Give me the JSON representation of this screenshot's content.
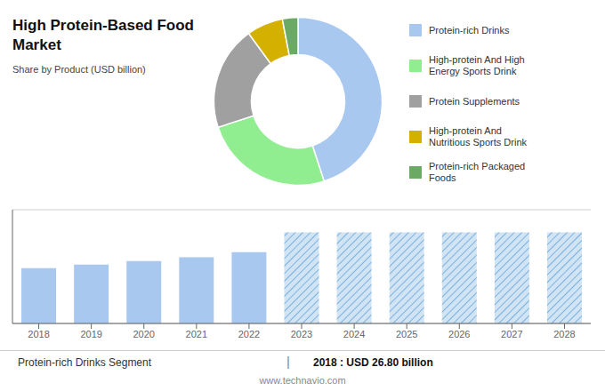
{
  "chart_data": [
    {
      "type": "pie",
      "title": "High Protein-Based Food\nMarket",
      "subtitle": "Share by Product (USD billion)",
      "categories": [
        "Protein-rich Drinks",
        "High-protein And High\nEnergy Sports Drink",
        "Protein Supplements",
        "High-protein And\nNutritious Sports Drink",
        "Protein-rich Packaged\nFoods"
      ],
      "values": [
        45,
        25,
        20,
        7,
        3
      ],
      "colors": [
        "#a8c8f0",
        "#90ee90",
        "#a0a0a0",
        "#d4b000",
        "#6aaa64"
      ],
      "legend": "right"
    },
    {
      "type": "bar",
      "categories": [
        "2018",
        "2019",
        "2020",
        "2021",
        "2022",
        "2023",
        "2024",
        "2025",
        "2026",
        "2027",
        "2028"
      ],
      "series": [
        {
          "color": "#a8c8f0",
          "values": [
            26.8,
            28.5,
            30.2,
            32.0,
            34.5,
            null,
            null,
            null,
            null,
            null,
            null
          ]
        },
        {
          "color": "#7ab0e0",
          "line_style": "hatched",
          "values": [
            null,
            null,
            null,
            null,
            null,
            44,
            44,
            44,
            44,
            44,
            44
          ]
        }
      ],
      "ylim": [
        0,
        55
      ],
      "yticks": [
        0,
        10,
        20,
        30,
        40,
        50
      ],
      "grid": true,
      "tick_labels": "x",
      "annotations": [
        "Protein-rich Drinks Segment",
        "|",
        "2018 : USD 26.80 billion",
        "www.technavio.com"
      ]
    }
  ]
}
